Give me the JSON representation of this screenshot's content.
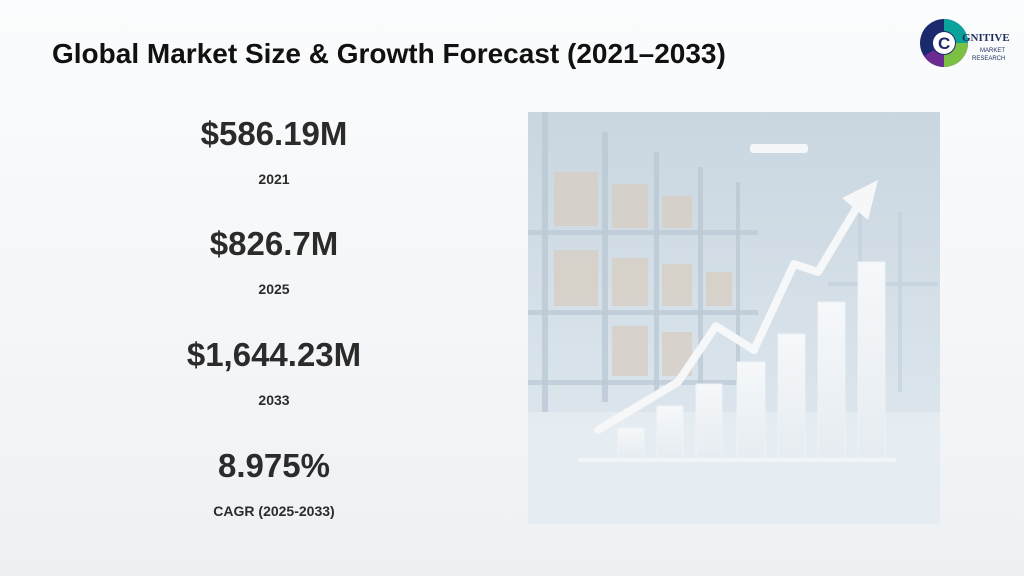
{
  "slide": {
    "title": "Global Market Size & Growth Forecast (2021–2033)"
  },
  "logo": {
    "letter": "C",
    "word": "GNITIVE",
    "line2": "MARKET",
    "line3": "RESEARCH",
    "colors": {
      "ring_dark": "#1a2a6c",
      "ring_teal": "#0aa39b",
      "ring_green": "#7cc043",
      "ring_purple": "#6a2c91",
      "text": "#1f2d5c"
    }
  },
  "stats": [
    {
      "value": "$586.19M",
      "label": "2021"
    },
    {
      "value": "$826.7M",
      "label": "2025"
    },
    {
      "value": "$1,644.23M",
      "label": "2033"
    },
    {
      "value": "8.975%",
      "label": "CAGR (2025-2033)"
    }
  ],
  "hero_image": {
    "description_icon": "warehouse-growth-chart-image",
    "bar_levels": [
      0.1,
      0.18,
      0.26,
      0.34,
      0.45,
      0.56,
      0.71
    ]
  }
}
